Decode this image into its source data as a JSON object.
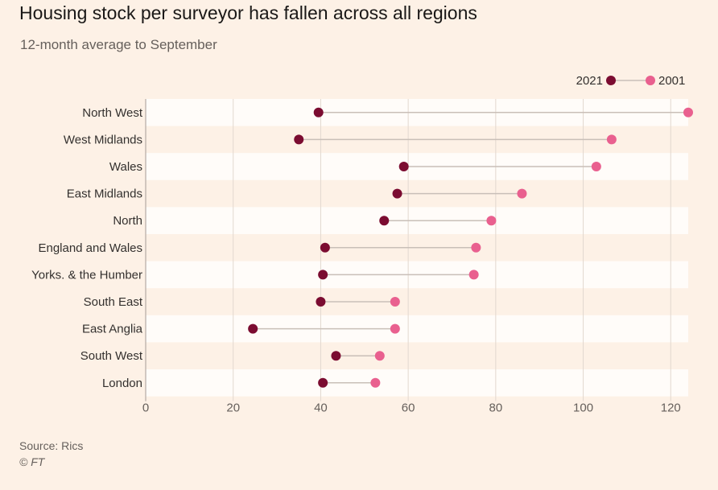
{
  "header": {
    "title": "Housing stock per surveyor has fallen across all regions",
    "subtitle": "12-month average to September"
  },
  "footer": {
    "source": "Source: Rics",
    "credit": "© FT"
  },
  "colors": {
    "background": "#fdf1e6",
    "band": "#fffcf9",
    "series_2021": "#7b0c31",
    "series_2001": "#e9608f",
    "connector": "#c9bfb8",
    "grid": "#e2d8cf"
  },
  "chart_data": {
    "type": "dot-plot",
    "orientation": "horizontal",
    "categories": [
      "North West",
      "West Midlands",
      "Wales",
      "East Midlands",
      "North",
      "England and Wales",
      "Yorks. & the Humber",
      "South East",
      "East Anglia",
      "South West",
      "London"
    ],
    "series": [
      {
        "name": "2021",
        "values": [
          39.5,
          35,
          59,
          57.5,
          54.5,
          41,
          40.5,
          40,
          24.5,
          43.5,
          40.5
        ]
      },
      {
        "name": "2001",
        "values": [
          124,
          106.5,
          103,
          86,
          79,
          75.5,
          75,
          57,
          57,
          53.5,
          52.5
        ]
      }
    ],
    "xlim": [
      0,
      124
    ],
    "xticks": [
      0,
      20,
      40,
      60,
      80,
      100,
      120
    ],
    "grid": true,
    "legend_position": "top-right"
  }
}
